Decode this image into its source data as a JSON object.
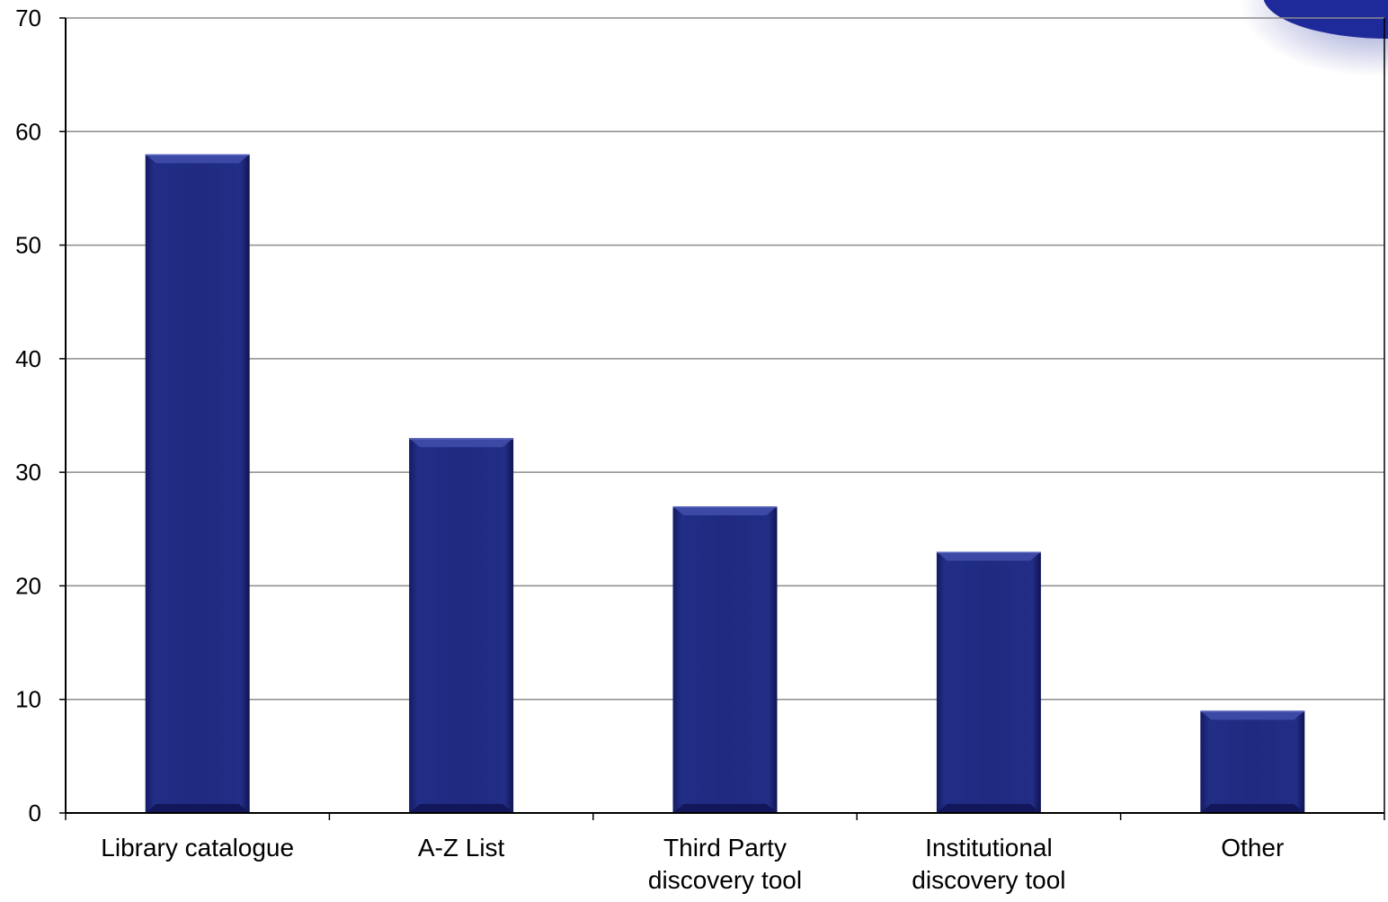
{
  "chart_data": {
    "type": "bar",
    "title": "",
    "xlabel": "",
    "ylabel": "",
    "categories": [
      [
        "Library catalogue"
      ],
      [
        "A-Z List"
      ],
      [
        "Third Party",
        "discovery tool"
      ],
      [
        "Institutional",
        "discovery tool"
      ],
      [
        "Other"
      ]
    ],
    "values": [
      58,
      33,
      27,
      23,
      9
    ],
    "ylim": [
      0,
      70
    ],
    "yticks": [
      0,
      10,
      20,
      30,
      40,
      50,
      60,
      70
    ],
    "grid": true,
    "legend": "none",
    "colors": {
      "bar": "#1f2a80",
      "bar_highlight": "#3c4aa6",
      "bar_shadow": "#11175a",
      "grid": "#8c8c8c",
      "axis": "#000000",
      "decoration": "#1f2a9a"
    }
  }
}
